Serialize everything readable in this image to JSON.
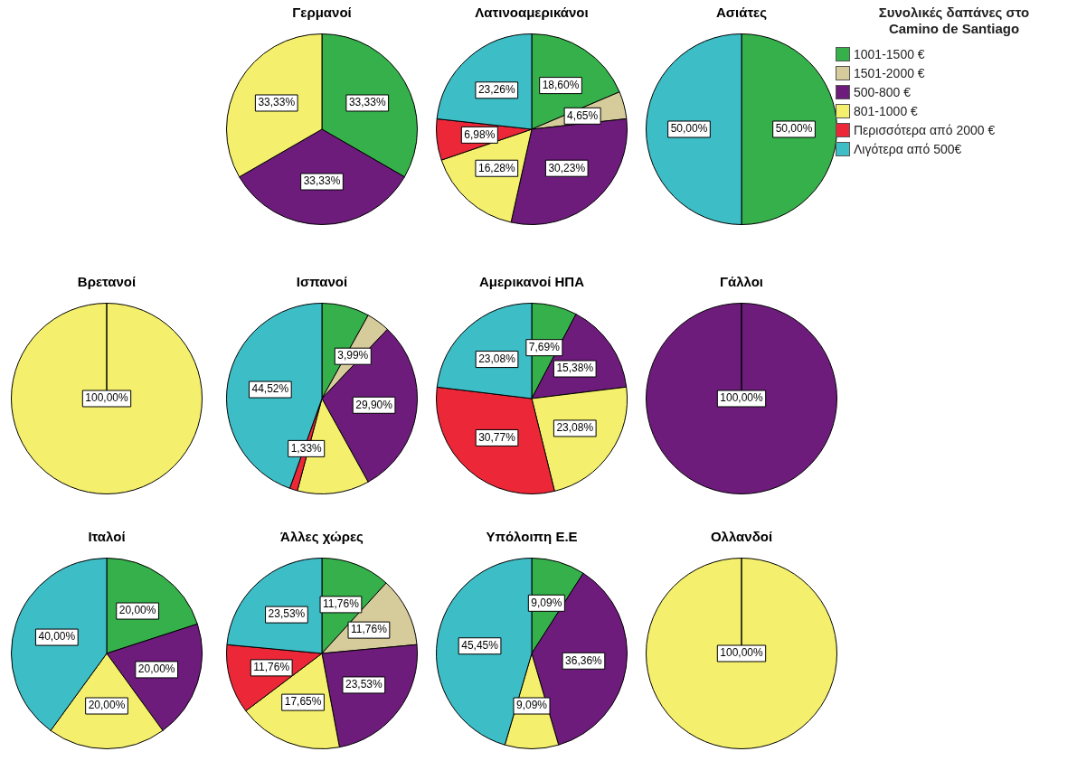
{
  "chart_data": [
    {
      "type": "pie",
      "title": "Γερμανοί",
      "categories": [
        null,
        null,
        null,
        null,
        null,
        null
      ],
      "colors": [
        "#35b04a",
        "#d6cb9a",
        "#6e1c7c",
        "#f4ef6c",
        "#ec2838",
        "#3dbdc6"
      ],
      "values": [
        33.33,
        0,
        33.33,
        33.33,
        0,
        0
      ],
      "value_labels": [
        "33,33%",
        null,
        "33,33%",
        "33,33%",
        null,
        null
      ]
    },
    {
      "type": "pie",
      "title": "Λατινοαμερικάνοι",
      "categories": [
        null,
        null,
        null,
        null,
        null,
        null
      ],
      "colors": [
        "#35b04a",
        "#d6cb9a",
        "#6e1c7c",
        "#f4ef6c",
        "#ec2838",
        "#3dbdc6"
      ],
      "values": [
        18.6,
        4.65,
        30.23,
        16.28,
        6.98,
        23.26
      ],
      "value_labels": [
        "18,60%",
        "4,65%",
        "30,23%",
        "16,28%",
        "6,98%",
        "23,26%"
      ]
    },
    {
      "type": "pie",
      "title": "Ασιάτες",
      "legend": "right",
      "legend_title": "Συνολικές δαπάνες στο Camino de Santiago",
      "categories": [
        "1001-1500 €",
        "1501-2000 €",
        "500-800 €",
        "801-1000 €",
        "Περισσότερα από 2000 €",
        "Λιγότερα από 500€"
      ],
      "colors": [
        "#35b04a",
        "#d6cb9a",
        "#6e1c7c",
        "#f4ef6c",
        "#ec2838",
        "#3dbdc6"
      ],
      "values": [
        50,
        0,
        0,
        0,
        0,
        50
      ],
      "value_labels": [
        "50,00%",
        null,
        null,
        null,
        null,
        "50,00%"
      ]
    },
    {
      "type": "pie",
      "title": "Βρετανοί",
      "categories": [
        null,
        null,
        null,
        null,
        null,
        null
      ],
      "colors": [
        "#35b04a",
        "#d6cb9a",
        "#6e1c7c",
        "#f4ef6c",
        "#ec2838",
        "#3dbdc6"
      ],
      "values": [
        0,
        0,
        0,
        100,
        0,
        0
      ],
      "value_labels": [
        null,
        null,
        null,
        "100,00%",
        null,
        null
      ]
    },
    {
      "type": "pie",
      "title": "Ισπανοί",
      "categories": [
        null,
        null,
        null,
        null,
        null,
        null
      ],
      "colors": [
        "#35b04a",
        "#d6cb9a",
        "#6e1c7c",
        "#f4ef6c",
        "#ec2838",
        "#3dbdc6"
      ],
      "values": [
        8.06,
        3.99,
        29.9,
        12.2,
        1.33,
        44.52
      ],
      "value_labels": [
        null,
        "3,99%",
        "29,90%",
        null,
        "1,33%",
        "44,52%"
      ]
    },
    {
      "type": "pie",
      "title": "Αμερικανοί ΗΠΑ",
      "categories": [
        null,
        null,
        null,
        null,
        null,
        null
      ],
      "colors": [
        "#35b04a",
        "#d6cb9a",
        "#6e1c7c",
        "#f4ef6c",
        "#ec2838",
        "#3dbdc6"
      ],
      "values": [
        7.69,
        0,
        15.38,
        23.08,
        30.77,
        23.08
      ],
      "value_labels": [
        "7,69%",
        null,
        "15,38%",
        "23,08%",
        "30,77%",
        "23,08%"
      ]
    },
    {
      "type": "pie",
      "title": "Γάλλοι",
      "categories": [
        null,
        null,
        null,
        null,
        null,
        null
      ],
      "colors": [
        "#35b04a",
        "#d6cb9a",
        "#6e1c7c",
        "#f4ef6c",
        "#ec2838",
        "#3dbdc6"
      ],
      "values": [
        0,
        0,
        100,
        0,
        0,
        0
      ],
      "value_labels": [
        null,
        null,
        "100,00%",
        null,
        null,
        null
      ]
    },
    {
      "type": "pie",
      "title": "Ιταλοί",
      "categories": [
        null,
        null,
        null,
        null,
        null,
        null
      ],
      "colors": [
        "#35b04a",
        "#d6cb9a",
        "#6e1c7c",
        "#f4ef6c",
        "#ec2838",
        "#3dbdc6"
      ],
      "values": [
        20,
        0,
        20,
        20,
        0,
        40
      ],
      "value_labels": [
        "20,00%",
        null,
        "20,00%",
        "20,00%",
        null,
        "40,00%"
      ]
    },
    {
      "type": "pie",
      "title": "Άλλες χώρες",
      "categories": [
        null,
        null,
        null,
        null,
        null,
        null
      ],
      "colors": [
        "#35b04a",
        "#d6cb9a",
        "#6e1c7c",
        "#f4ef6c",
        "#ec2838",
        "#3dbdc6"
      ],
      "values": [
        11.76,
        11.76,
        23.53,
        17.65,
        11.76,
        23.53
      ],
      "value_labels": [
        "11,76%",
        "11,76%",
        "23,53%",
        "17,65%",
        "11,76%",
        "23,53%"
      ]
    },
    {
      "type": "pie",
      "title": "Υπόλοιπη Ε.Ε",
      "categories": [
        null,
        null,
        null,
        null,
        null,
        null
      ],
      "colors": [
        "#35b04a",
        "#d6cb9a",
        "#6e1c7c",
        "#f4ef6c",
        "#ec2838",
        "#3dbdc6"
      ],
      "values": [
        9.09,
        0,
        36.36,
        9.09,
        0,
        45.45
      ],
      "value_labels": [
        "9,09%",
        null,
        "36,36%",
        "9,09%",
        null,
        "45,45%"
      ]
    },
    {
      "type": "pie",
      "title": "Ολλανδοί",
      "categories": [
        null,
        null,
        null,
        null,
        null,
        null
      ],
      "colors": [
        "#35b04a",
        "#d6cb9a",
        "#6e1c7c",
        "#f4ef6c",
        "#ec2838",
        "#3dbdc6"
      ],
      "values": [
        0,
        0,
        0,
        100,
        0,
        0
      ],
      "value_labels": [
        null,
        null,
        null,
        "100,00%",
        null,
        null
      ]
    }
  ]
}
